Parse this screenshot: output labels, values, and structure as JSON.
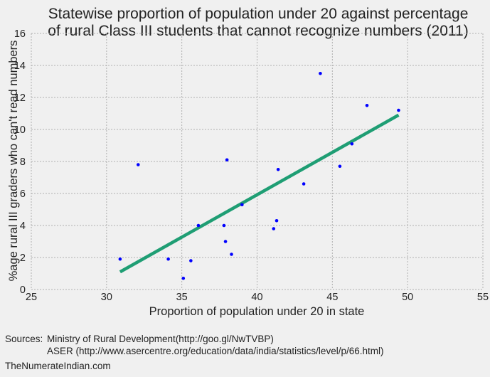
{
  "chart_data": {
    "type": "scatter",
    "title_lines": [
      "Statewise proportion of population under 20 against percentage",
      "of rural Class III students that cannot recognize numbers (2011)"
    ],
    "xlabel": "Proportion of population under 20 in state",
    "ylabel": "%age rural III graders who can't read numbers",
    "xlim": [
      25,
      55
    ],
    "ylim": [
      0,
      16
    ],
    "xticks": [
      25,
      30,
      35,
      40,
      45,
      50,
      55
    ],
    "yticks": [
      0,
      2,
      4,
      6,
      8,
      10,
      12,
      14,
      16
    ],
    "grid": true,
    "points": [
      {
        "x": 30.9,
        "y": 1.9
      },
      {
        "x": 32.1,
        "y": 7.8
      },
      {
        "x": 34.1,
        "y": 1.9
      },
      {
        "x": 35.1,
        "y": 0.7
      },
      {
        "x": 35.6,
        "y": 1.8
      },
      {
        "x": 36.1,
        "y": 4.0
      },
      {
        "x": 37.8,
        "y": 4.0
      },
      {
        "x": 37.9,
        "y": 3.0
      },
      {
        "x": 38.0,
        "y": 8.1
      },
      {
        "x": 38.3,
        "y": 2.2
      },
      {
        "x": 39.0,
        "y": 5.3
      },
      {
        "x": 41.1,
        "y": 3.8
      },
      {
        "x": 41.3,
        "y": 4.3
      },
      {
        "x": 41.4,
        "y": 7.5
      },
      {
        "x": 43.1,
        "y": 6.6
      },
      {
        "x": 44.2,
        "y": 13.5
      },
      {
        "x": 45.5,
        "y": 7.7
      },
      {
        "x": 46.3,
        "y": 9.1
      },
      {
        "x": 47.3,
        "y": 11.5
      },
      {
        "x": 49.4,
        "y": 11.2
      }
    ],
    "trendline": {
      "x": [
        30.9,
        49.4
      ],
      "y": [
        1.1,
        10.9
      ]
    },
    "colors": {
      "points": "#0000ff",
      "trendline": "#1f9e74",
      "grid": "#b0b0b0"
    }
  },
  "footer": {
    "sources_label": "Sources:",
    "source_1": "Ministry of Rural Development(http://goo.gl/NwTVBP)",
    "source_2": "ASER (http://www.asercentre.org/education/data/india/statistics/level/p/66.html)",
    "brand": "TheNumerateIndian.com"
  }
}
